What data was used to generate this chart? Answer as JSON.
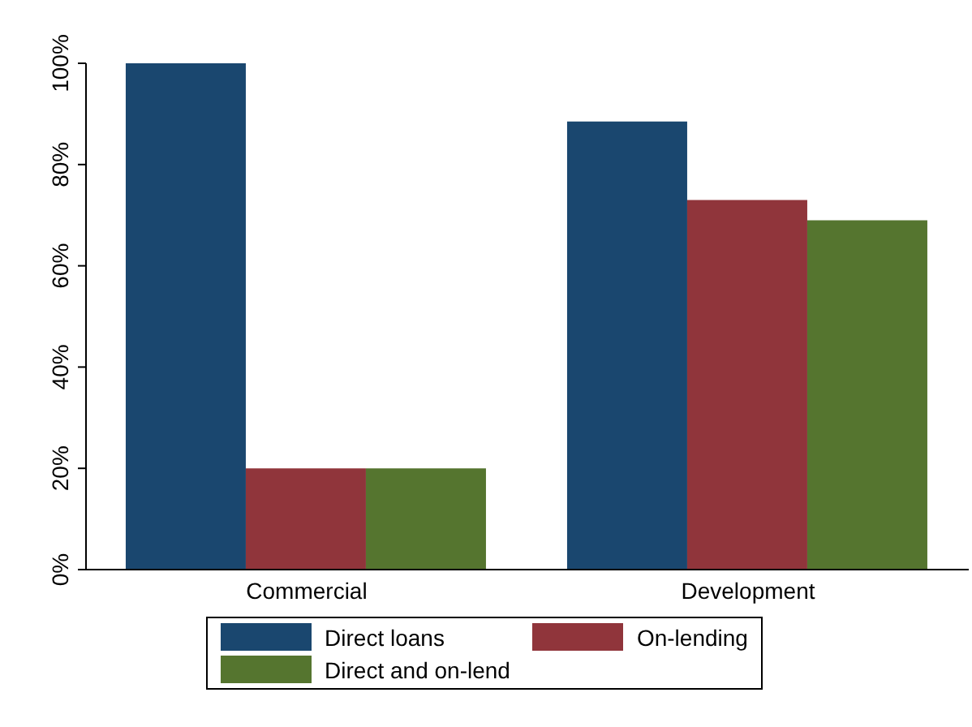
{
  "chart_data": {
    "type": "bar",
    "categories": [
      "Commercial",
      "Development"
    ],
    "series": [
      {
        "name": "Direct loans",
        "color": "#1a476f",
        "values": [
          100,
          88.5
        ]
      },
      {
        "name": "On-lending",
        "color": "#90353b",
        "values": [
          20,
          73
        ]
      },
      {
        "name": "Direct and on-lend",
        "color": "#55752f",
        "values": [
          20,
          69
        ]
      }
    ],
    "ylim": [
      0,
      100
    ],
    "yticks": [
      {
        "value": 0,
        "label": "0%"
      },
      {
        "value": 20,
        "label": "20%"
      },
      {
        "value": 40,
        "label": "40%"
      },
      {
        "value": 60,
        "label": "60%"
      },
      {
        "value": 80,
        "label": "80%"
      },
      {
        "value": 100,
        "label": "100%"
      }
    ],
    "grid": false,
    "legend": "bottom"
  }
}
